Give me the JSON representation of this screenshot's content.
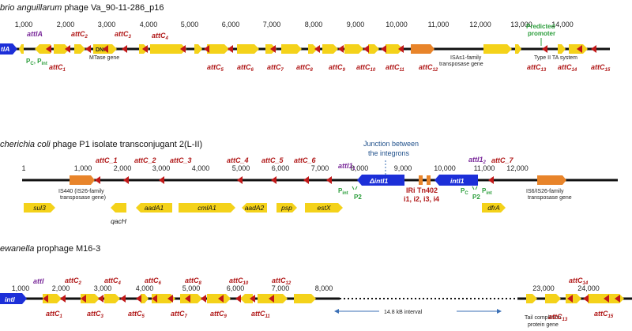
{
  "panel1": {
    "title_pre": "brio anguillarum",
    "title_post": " phage Va_90-11-286_p16",
    "ticks": [
      "1,000",
      "2,000",
      "3,000",
      "4,000",
      "5,000",
      "6,000",
      "7,000",
      "8,000",
      "9,000",
      "10,000",
      "11,000",
      "12,000",
      "13,000",
      "14,000"
    ],
    "integrase_label": "tIA",
    "attIA": "attIA",
    "pc_pint": "P",
    "pc_sub": "C",
    "pint_sub": "int",
    "dna_label": "DNA",
    "mtase_label": "MTase gene",
    "isas1_label_1": "ISAs1-family",
    "isas1_label_2": "transposase gene",
    "predicted_1": "Predicted",
    "predicted_2": "promoter",
    "ta_label": "Type II TA system",
    "attC_above": [
      {
        "t": "attC",
        "s": "2"
      },
      {
        "t": "attC",
        "s": "3"
      },
      {
        "t": "attC",
        "s": "4"
      }
    ],
    "attC_below": [
      {
        "t": "attC",
        "s": "1"
      },
      {
        "t": "attC",
        "s": "5"
      },
      {
        "t": "attC",
        "s": "6"
      },
      {
        "t": "attC",
        "s": "7"
      },
      {
        "t": "attC",
        "s": "8"
      },
      {
        "t": "attC",
        "s": "9"
      },
      {
        "t": "attC",
        "s": "10"
      },
      {
        "t": "attC",
        "s": "11"
      },
      {
        "t": "attC",
        "s": "12"
      },
      {
        "t": "attC",
        "s": "13"
      },
      {
        "t": "attC",
        "s": "14"
      },
      {
        "t": "attC",
        "s": "15"
      },
      {
        "t": "attC",
        "s": "16"
      }
    ]
  },
  "panel2": {
    "title_pre": "cherichia coli",
    "title_post": " phage P1 isolate transconjugant 2(L-II)",
    "ticks": [
      "1",
      "1,000",
      "2,000",
      "3,000",
      "4,000",
      "5,000",
      "6,000",
      "7,000",
      "8,000",
      "9,000",
      "10,000",
      "11,000",
      "12,000"
    ],
    "junction_1": "Junction between",
    "junction_2": "the integrons",
    "is440_1": "IS440 (IS26-family",
    "is440_2": "transposase gene)",
    "is6_1": "IS6/IS26-family",
    "is6_2": "transposase gene",
    "attC": [
      "attC_1",
      "attC_2",
      "attC_3",
      "attC_4",
      "attC_5",
      "attC_6",
      "attC_7"
    ],
    "attI1_a": "attI1",
    "attI1_sub_a": "1",
    "attI1_b": "attI1",
    "attI1_sub_b": "2",
    "dintI1": "ΔintI1",
    "intI1": "intI1",
    "iri_1": "IRi Tn402",
    "iri_2": "i1, i2, i3, i4",
    "genes": [
      "sul3",
      "qacH",
      "aadA1",
      "cmlA1",
      "aadA2",
      "psp",
      "estX",
      "dfrA"
    ],
    "pint": "P",
    "pint_sub": "int",
    "p2": "P2",
    "pc": "P",
    "pc_sub": "C"
  },
  "panel3": {
    "title_pre": "ewanella",
    "title_post": " prophage M16-3",
    "ticks": [
      "1,000",
      "2,000",
      "3,000",
      "4,000",
      "5,000",
      "6,000",
      "7,000",
      "8,000",
      "23,000",
      "24,000"
    ],
    "intI_label": "intI",
    "attI": "attI",
    "interval": "14.8 kB interval",
    "tail_1": "Tail completion",
    "tail_2": "protein gene",
    "attC_above": [
      {
        "t": "attC",
        "s": "2"
      },
      {
        "t": "attC",
        "s": "4"
      },
      {
        "t": "attC",
        "s": "6"
      },
      {
        "t": "attC",
        "s": "8"
      },
      {
        "t": "attC",
        "s": "10"
      },
      {
        "t": "attC",
        "s": "12"
      },
      {
        "t": "attC",
        "s": "14"
      }
    ],
    "attC_below": [
      {
        "t": "attC",
        "s": "1"
      },
      {
        "t": "attC",
        "s": "3"
      },
      {
        "t": "attC",
        "s": "5"
      },
      {
        "t": "attC",
        "s": "7"
      },
      {
        "t": "attC",
        "s": "9"
      },
      {
        "t": "attC",
        "s": "11"
      },
      {
        "t": "attC",
        "s": "13"
      },
      {
        "t": "attC",
        "s": "15"
      }
    ]
  },
  "colors": {
    "gene": "#f4d21a",
    "integrase": "#1c2fd8",
    "transposase": "#e8842a",
    "site": "#c01818",
    "promoter": "#2a9d3a",
    "attI": "#7a2a9a"
  }
}
